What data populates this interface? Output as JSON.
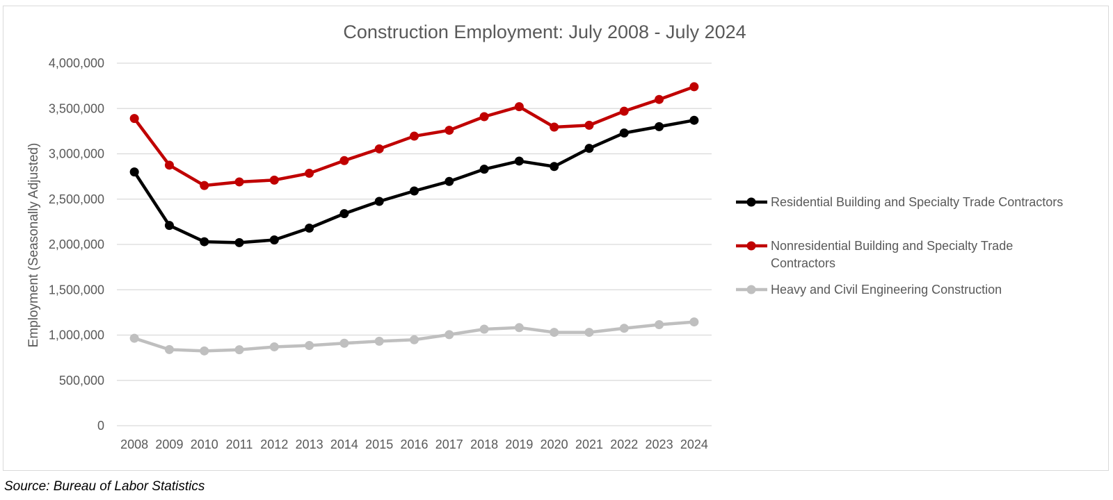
{
  "chart_data": {
    "type": "line",
    "title": "Construction Employment: July 2008 - July 2024",
    "ylabel": "Employment (Seasonally Adjusted)",
    "xlabel": "",
    "ylim": [
      0,
      4000000
    ],
    "yticks": [
      {
        "value": 0,
        "label": "0"
      },
      {
        "value": 500000,
        "label": "500,000"
      },
      {
        "value": 1000000,
        "label": "1,000,000"
      },
      {
        "value": 1500000,
        "label": "1,500,000"
      },
      {
        "value": 2000000,
        "label": "2,000,000"
      },
      {
        "value": 2500000,
        "label": "2,500,000"
      },
      {
        "value": 3000000,
        "label": "3,000,000"
      },
      {
        "value": 3500000,
        "label": "3,500,000"
      },
      {
        "value": 4000000,
        "label": "4,000,000"
      }
    ],
    "categories": [
      "2008",
      "2009",
      "2010",
      "2011",
      "2012",
      "2013",
      "2014",
      "2015",
      "2016",
      "2017",
      "2018",
      "2019",
      "2020",
      "2021",
      "2022",
      "2023",
      "2024"
    ],
    "grid": true,
    "legend_position": "right",
    "series": [
      {
        "name": "Residential Building and Specialty Trade Contractors",
        "color": "#000000",
        "values": [
          2800000,
          2210000,
          2030000,
          2020000,
          2050000,
          2180000,
          2340000,
          2475000,
          2590000,
          2695000,
          2830000,
          2920000,
          2860000,
          3060000,
          3230000,
          3300000,
          3370000
        ]
      },
      {
        "name": "Nonresidential Building and Specialty Trade Contractors",
        "legend_lines": [
          "Nonresidential Building and Specialty Trade",
          "Contractors"
        ],
        "color": "#c00000",
        "values": [
          3390000,
          2875000,
          2650000,
          2690000,
          2710000,
          2785000,
          2925000,
          3055000,
          3195000,
          3260000,
          3410000,
          3520000,
          3295000,
          3315000,
          3470000,
          3600000,
          3740000
        ]
      },
      {
        "name": "Heavy and Civil Engineering Construction",
        "color": "#bfbfbf",
        "values": [
          965000,
          840000,
          825000,
          838000,
          870000,
          885000,
          910000,
          932000,
          948000,
          1005000,
          1065000,
          1082000,
          1030000,
          1030000,
          1075000,
          1115000,
          1145000
        ]
      }
    ]
  },
  "source": "Source: Bureau of Labor Statistics"
}
